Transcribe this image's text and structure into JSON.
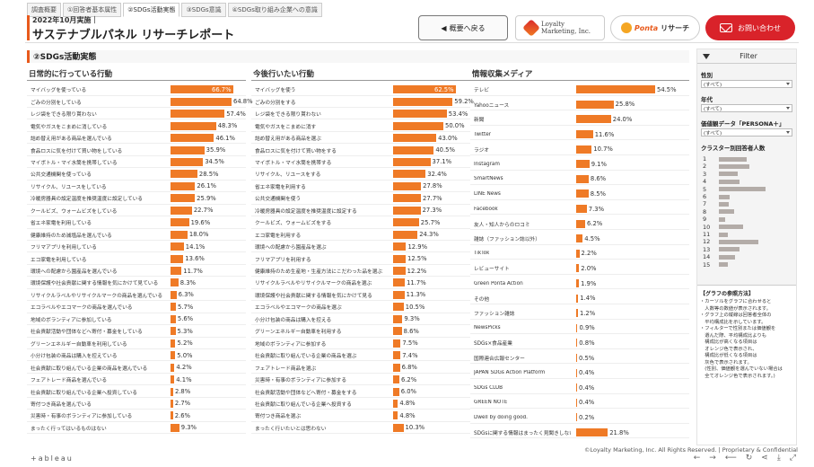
{
  "tabs": [
    "調査概要",
    "①回答者基本属性",
    "②SDGs活動実態",
    "③SDGs意識",
    "④SDGs取り組み企業への意識"
  ],
  "header": {
    "date": "2022年10月実施｜",
    "title": "サステナブルパネル リサーチレポート",
    "back_button": "概要へ戻る",
    "loyalty_logo_line1": "Loyalty",
    "loyalty_logo_line2": "Marketing, Inc.",
    "ponta_logo_word": "Ponta",
    "ponta_logo_suffix": "リサーチ",
    "contact_button": "お問い合わせ"
  },
  "section_heading": "②SDGs活動実態",
  "colors": {
    "bar": "#ef7a26",
    "accent": "#e85a1c",
    "contact": "#d9232a",
    "cluster_bar": "#b3aca8"
  },
  "panels": [
    {
      "title": "日常的に行っている行動",
      "rows": [
        {
          "label": "マイバッグを使っている",
          "value": 66.7,
          "text": "66.7%"
        },
        {
          "label": "ごみの分別をしている",
          "value": 64.8,
          "text": "64.8%"
        },
        {
          "label": "レジ袋をできる限り貰わない",
          "value": 57.4,
          "text": "57.4%"
        },
        {
          "label": "電気やガスをこまめに消している",
          "value": 48.3,
          "text": "48.3%"
        },
        {
          "label": "詰め替え用がある商品を選んでいる",
          "value": 46.1,
          "text": "46.1%"
        },
        {
          "label": "食品ロスに気を付けて買い物をしている",
          "value": 35.9,
          "text": "35.9%"
        },
        {
          "label": "マイボトル・マイ水筒を携帯している",
          "value": 34.5,
          "text": "34.5%"
        },
        {
          "label": "公共交通機関を使っている",
          "value": 28.5,
          "text": "28.5%"
        },
        {
          "label": "リサイクル、リユースをしている",
          "value": 26.1,
          "text": "26.1%"
        },
        {
          "label": "冷暖房器具の設定温度を推奨温度に設定している",
          "value": 25.9,
          "text": "25.9%"
        },
        {
          "label": "クールビズ、ウォームビズをしている",
          "value": 22.7,
          "text": "22.7%"
        },
        {
          "label": "省エネ家電を利用している",
          "value": 19.6,
          "text": "19.6%"
        },
        {
          "label": "健康維持のため減塩品を選んでいる",
          "value": 18.0,
          "text": "18.0%"
        },
        {
          "label": "フリマアプリを利用している",
          "value": 14.1,
          "text": "14.1%"
        },
        {
          "label": "エコ家電を利用している",
          "value": 13.6,
          "text": "13.6%"
        },
        {
          "label": "環境への配慮から園産品を選んでいる",
          "value": 11.7,
          "text": "11.7%"
        },
        {
          "label": "環境保護や社会貢献に関する情報を気にかけて見ている",
          "value": 8.3,
          "text": "8.3%"
        },
        {
          "label": "リサイクルラベルやリサイクルマークの商品を選んでいる",
          "value": 6.3,
          "text": "6.3%"
        },
        {
          "label": "エコラベルやエコマークの商品を選んでいる",
          "value": 5.7,
          "text": "5.7%"
        },
        {
          "label": "地域のボランティアに参加している",
          "value": 5.6,
          "text": "5.6%"
        },
        {
          "label": "社会貢献活動や団体などへ寄付・募金をしている",
          "value": 5.3,
          "text": "5.3%"
        },
        {
          "label": "グリーンエネルギー自動車を利用している",
          "value": 5.2,
          "text": "5.2%"
        },
        {
          "label": "小分け包装の商品は購入を控えている",
          "value": 5.0,
          "text": "5.0%"
        },
        {
          "label": "社会貢献に取り組んでいる企業の商品を選んでいる",
          "value": 4.2,
          "text": "4.2%"
        },
        {
          "label": "フェアトレード商品を選んでいる",
          "value": 4.1,
          "text": "4.1%"
        },
        {
          "label": "社会貢献に取り組んでいる企業へ投資している",
          "value": 2.8,
          "text": "2.8%"
        },
        {
          "label": "寄付つき商品を選んでいる",
          "value": 2.7,
          "text": "2.7%"
        },
        {
          "label": "災害時・有事のボランティアに参加している",
          "value": 2.6,
          "text": "2.6%"
        },
        {
          "label": "まったく行ってはいるものはない",
          "value": 9.3,
          "text": "9.3%"
        }
      ]
    },
    {
      "title": "今後行いたい行動",
      "rows": [
        {
          "label": "マイバッグを使う",
          "value": 62.5,
          "text": "62.5%"
        },
        {
          "label": "ごみの分別をする",
          "value": 59.2,
          "text": "59.2%"
        },
        {
          "label": "レジ袋をできる限り貰わない",
          "value": 53.4,
          "text": "53.4%"
        },
        {
          "label": "電気やガスをこまめに消す",
          "value": 50.0,
          "text": "50.0%"
        },
        {
          "label": "詰め替え用がある商品を選ぶ",
          "value": 43.0,
          "text": "43.0%"
        },
        {
          "label": "食品ロスに気を付けて買い物をする",
          "value": 40.5,
          "text": "40.5%"
        },
        {
          "label": "マイボトル・マイ水筒を携帯する",
          "value": 37.1,
          "text": "37.1%"
        },
        {
          "label": "リサイクル、リユースをする",
          "value": 32.4,
          "text": "32.4%"
        },
        {
          "label": "省エネ家電を利用する",
          "value": 27.8,
          "text": "27.8%"
        },
        {
          "label": "公共交通機関を使う",
          "value": 27.7,
          "text": "27.7%"
        },
        {
          "label": "冷暖房器具の設定温度を推奨温度に設定する",
          "value": 27.3,
          "text": "27.3%"
        },
        {
          "label": "クールビズ、ウォームビズをする",
          "value": 25.7,
          "text": "25.7%"
        },
        {
          "label": "エコ家電を利用する",
          "value": 24.3,
          "text": "24.3%"
        },
        {
          "label": "環境への配慮から園産品を選ぶ",
          "value": 12.9,
          "text": "12.9%"
        },
        {
          "label": "フリマアプリを利用する",
          "value": 12.5,
          "text": "12.5%"
        },
        {
          "label": "健康維持のため生産地・生産方法にこだわった品を選ぶ",
          "value": 12.2,
          "text": "12.2%"
        },
        {
          "label": "リサイクルラベルやリサイクルマークの商品を選ぶ",
          "value": 11.7,
          "text": "11.7%"
        },
        {
          "label": "環境保護や社会貢献に関する情報を気にかけて見る",
          "value": 11.3,
          "text": "11.3%"
        },
        {
          "label": "エコラベルやエコマークの商品を選ぶ",
          "value": 10.5,
          "text": "10.5%"
        },
        {
          "label": "小分け包装の商品は購入を控える",
          "value": 9.3,
          "text": "9.3%"
        },
        {
          "label": "グリーンエネルギー自動車を利用する",
          "value": 8.6,
          "text": "8.6%"
        },
        {
          "label": "地域のボランティアに参加する",
          "value": 7.5,
          "text": "7.5%"
        },
        {
          "label": "社会貢献に取り組んでいる企業の商品を選ぶ",
          "value": 7.4,
          "text": "7.4%"
        },
        {
          "label": "フェアトレード商品を選ぶ",
          "value": 6.8,
          "text": "6.8%"
        },
        {
          "label": "災害時・有事のボランティアに参加する",
          "value": 6.2,
          "text": "6.2%"
        },
        {
          "label": "社会貢献活動や団体などへ寄付・募金をする",
          "value": 6.0,
          "text": "6.0%"
        },
        {
          "label": "社会貢献に取り組んでいる企業へ投資する",
          "value": 4.8,
          "text": "4.8%"
        },
        {
          "label": "寄付つき商品を選ぶ",
          "value": 4.8,
          "text": "4.8%"
        },
        {
          "label": "まったく行いたいとは思わない",
          "value": 10.3,
          "text": "10.3%"
        }
      ]
    },
    {
      "title": "情報収集メディア",
      "rows": [
        {
          "label": "テレビ",
          "value": 54.5,
          "text": "54.5%"
        },
        {
          "label": "Yahooニュース",
          "value": 25.8,
          "text": "25.8%"
        },
        {
          "label": "新聞",
          "value": 24.0,
          "text": "24.0%"
        },
        {
          "label": "Twitter",
          "value": 11.6,
          "text": "11.6%"
        },
        {
          "label": "ラジオ",
          "value": 10.7,
          "text": "10.7%"
        },
        {
          "label": "Instagram",
          "value": 9.1,
          "text": "9.1%"
        },
        {
          "label": "SmartNews",
          "value": 8.6,
          "text": "8.6%"
        },
        {
          "label": "LINE News",
          "value": 8.5,
          "text": "8.5%"
        },
        {
          "label": "Facebook",
          "value": 7.3,
          "text": "7.3%"
        },
        {
          "label": "友人・知人からのロコミ",
          "value": 6.2,
          "text": "6.2%"
        },
        {
          "label": "雑誌（ファッション誌以外）",
          "value": 4.5,
          "text": "4.5%"
        },
        {
          "label": "TikTok",
          "value": 2.2,
          "text": "2.2%"
        },
        {
          "label": "レビューサイト",
          "value": 2.0,
          "text": "2.0%"
        },
        {
          "label": "Green Ponta Action",
          "value": 1.9,
          "text": "1.9%"
        },
        {
          "label": "その他",
          "value": 1.4,
          "text": "1.4%"
        },
        {
          "label": "ファッション雑誌",
          "value": 1.2,
          "text": "1.2%"
        },
        {
          "label": "NewsPicks",
          "value": 0.9,
          "text": "0.9%"
        },
        {
          "label": "SDGs×食品産業",
          "value": 0.8,
          "text": "0.8%"
        },
        {
          "label": "国際連合広報センター",
          "value": 0.5,
          "text": "0.5%"
        },
        {
          "label": "JAPAN SDGs Action Platform",
          "value": 0.4,
          "text": "0.4%"
        },
        {
          "label": "SDGs CLUB",
          "value": 0.4,
          "text": "0.4%"
        },
        {
          "label": "GREEN NOTE",
          "value": 0.4,
          "text": "0.4%"
        },
        {
          "label": "Dwell by doing good.",
          "value": 0.2,
          "text": "0.2%"
        },
        {
          "label": "SDGsに関する情報はまったく見聞きしない",
          "value": 21.8,
          "text": "21.8%"
        }
      ]
    }
  ],
  "sidebar": {
    "title": "Filter",
    "filters": [
      {
        "label": "性別",
        "value": "(すべて)"
      },
      {
        "label": "年代",
        "value": "(すべて)"
      },
      {
        "label": "価値観データ「PERSONA＋」",
        "value": "(すべて)"
      }
    ],
    "cluster_title": "クラスター別回答者人数",
    "cluster_values": [
      {
        "n": "1",
        "v": 55
      },
      {
        "n": "2",
        "v": 60
      },
      {
        "n": "3",
        "v": 37
      },
      {
        "n": "4",
        "v": 41
      },
      {
        "n": "5",
        "v": 93
      },
      {
        "n": "6",
        "v": 22
      },
      {
        "n": "7",
        "v": 20
      },
      {
        "n": "8",
        "v": 30
      },
      {
        "n": "9",
        "v": 12
      },
      {
        "n": "10",
        "v": 48
      },
      {
        "n": "11",
        "v": 18
      },
      {
        "n": "12",
        "v": 79
      },
      {
        "n": "13",
        "v": 42
      },
      {
        "n": "14",
        "v": 33
      },
      {
        "n": "15",
        "v": 17
      }
    ],
    "note_title": "【グラフの参照方法】",
    "note_text": "・カーソルをグラフに合わせると\n　人数等の数値が表示されます。\n・グラフ上の縦線は回答者全体の\n　平均構成比を示しています。\n・フィルターで性別または価値観を\n　選んだ際、平均構成比よりも\n　構成比が高くなる項目は\n　オレンジ色で表示され、\n　構成比が低くなる項目は\n　灰色で表示されます。\n　(性別、価値観を選んでいない場合は\n　全てオレンジ色で表示されます。)"
  },
  "footer": {
    "copyright": "©Loyalty Marketing, Inc. All Rights Reserved. | Proprietary & Confidential",
    "tableau": "+ableau",
    "toolbar_icons": [
      "undo-icon",
      "redo-icon",
      "revert-icon",
      "refresh-icon",
      "share-icon",
      "download-icon",
      "fullscreen-icon"
    ]
  }
}
